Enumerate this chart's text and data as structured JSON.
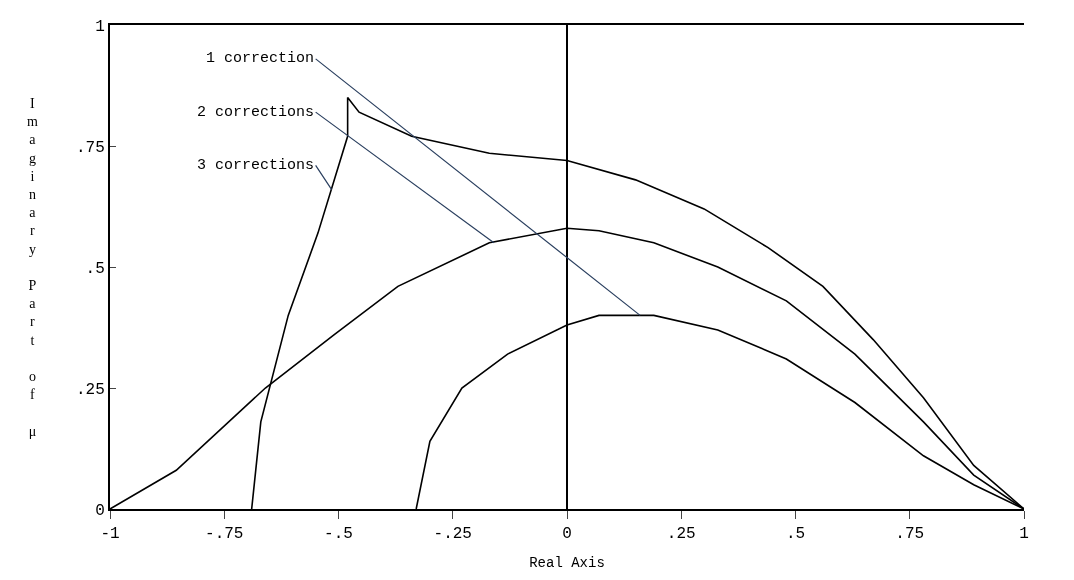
{
  "chart_data": {
    "type": "line",
    "xlabel": "Real Axis",
    "ylabel": "Imaginary Part of μ",
    "xlim": [
      -1,
      1
    ],
    "ylim": [
      0,
      1
    ],
    "xticks": [
      {
        "value": -1,
        "label": "-1"
      },
      {
        "value": -0.75,
        "label": "-.75"
      },
      {
        "value": -0.5,
        "label": "-.5"
      },
      {
        "value": -0.25,
        "label": "-.25"
      },
      0,
      {
        "value": 0.25,
        "label": ".25"
      },
      {
        "value": 0.5,
        "label": ".5"
      },
      {
        "value": 0.75,
        "label": ".75"
      },
      1
    ],
    "yticks": [
      0,
      {
        "value": 0.25,
        "label": ".25"
      },
      {
        "value": 0.5,
        "label": ".5"
      },
      {
        "value": 0.75,
        "label": ".75"
      },
      1
    ],
    "marker": "none",
    "line_style": "solid",
    "series": [
      {
        "color": "#000000",
        "x": [
          -0.33,
          -0.3,
          -0.23,
          -0.13,
          0,
          0.07,
          0.19,
          0.33,
          0.48,
          0.63,
          0.78,
          0.89,
          1
        ],
        "values": [
          0,
          0.14,
          0.25,
          0.32,
          0.38,
          0.4,
          0.4,
          0.37,
          0.31,
          0.22,
          0.11,
          0.05,
          0
        ]
      },
      {
        "color": "#000000",
        "x": [
          -1,
          -0.855,
          -0.66,
          -0.51,
          -0.37,
          -0.17,
          0,
          0.07,
          0.19,
          0.33,
          0.48,
          0.63,
          0.78,
          0.89,
          1
        ],
        "values": [
          0,
          0.08,
          0.25,
          0.36,
          0.46,
          0.55,
          0.58,
          0.575,
          0.55,
          0.5,
          0.43,
          0.32,
          0.18,
          0.07,
          0
        ]
      },
      {
        "color": "#000000",
        "x": [
          -0.69,
          -0.67,
          -0.61,
          -0.545,
          -0.48,
          -0.48,
          -0.455,
          -0.34,
          -0.17,
          0,
          0.15,
          0.3,
          0.44,
          0.56,
          0.67,
          0.78,
          0.89,
          1
        ],
        "values": [
          0,
          0.18,
          0.4,
          0.57,
          0.77,
          0.85,
          0.82,
          0.77,
          0.735,
          0.72,
          0.68,
          0.62,
          0.54,
          0.46,
          0.35,
          0.23,
          0.09,
          0
        ]
      }
    ],
    "annotations": [
      {
        "text": "1 correction",
        "x": 0.16,
        "y": 0.4
      },
      {
        "text": "2 corrections",
        "x": -0.16,
        "y": 0.55
      },
      {
        "text": "3 corrections",
        "x": -0.515,
        "y": 0.66
      }
    ],
    "ref_lines": [
      {
        "axis": "x",
        "value": 0,
        "color": "#000000"
      }
    ]
  }
}
